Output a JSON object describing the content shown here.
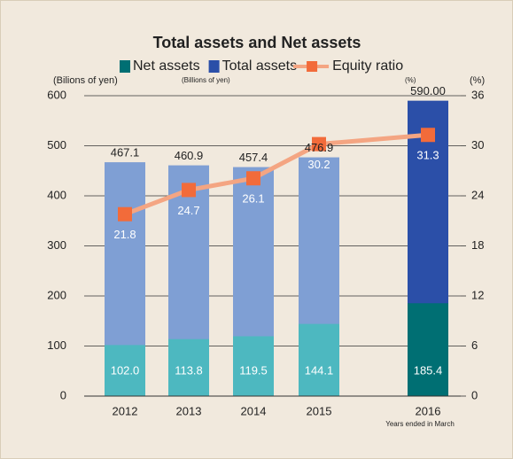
{
  "chart_data": {
    "type": "bar",
    "overlay": true,
    "title": "Total assets and Net assets",
    "y_label": "(Bilions of yen)",
    "y_label_small": "(Billions of yen)",
    "y2_label": "(%)",
    "y2_label_small": "(%)",
    "x_note": "Years ended in March",
    "categories": [
      "2012",
      "2013",
      "2014",
      "2015",
      "2016"
    ],
    "series": [
      {
        "name": "Net assets",
        "color": "#006f73",
        "point_colors": [
          "#4db8c0",
          "#4db8c0",
          "#4db8c0",
          "#4db8c0",
          "#006f73"
        ],
        "values": [
          102.0,
          113.8,
          119.5,
          144.1,
          185.4
        ],
        "value_labels": [
          "102.0",
          "113.8",
          "119.5",
          "144.1",
          "185.4"
        ]
      },
      {
        "name": "Total assets",
        "color": "#2b4fa8",
        "point_colors": [
          "#7f9fd4",
          "#7f9fd4",
          "#7f9fd4",
          "#7f9fd4",
          "#2b4fa8"
        ],
        "values": [
          467.1,
          460.9,
          457.4,
          476.9,
          590.0
        ],
        "value_labels": [
          "467.1",
          "460.9",
          "457.4",
          "476.9",
          "590.00"
        ]
      },
      {
        "name": "Equity ratio",
        "type": "line",
        "axis": "y2",
        "color": "#f26b3a",
        "line_color": "#f4a582",
        "values": [
          21.8,
          24.7,
          26.1,
          30.2,
          31.3
        ]
      }
    ],
    "ylim": [
      0,
      600
    ],
    "yticks": [
      0,
      100,
      200,
      300,
      400,
      500,
      600
    ],
    "y2lim": [
      0,
      36
    ],
    "y2ticks": [
      0,
      6,
      12,
      18,
      24,
      30,
      36
    ],
    "grid": true
  }
}
